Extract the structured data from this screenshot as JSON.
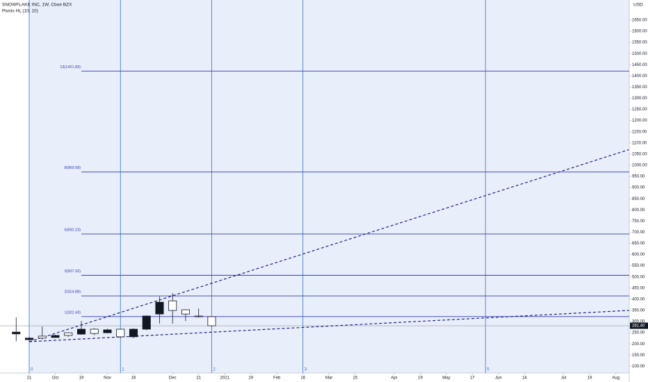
{
  "chart_data": {
    "type": "candlestick",
    "title": "SNOWFLAKE INC, 1W, Cboe BZX",
    "subtitle": "Pivots HL (10, 10)",
    "currency": "USD",
    "x": [
      -1,
      0,
      1,
      2,
      3,
      4,
      5,
      6,
      7,
      8,
      9,
      10,
      11,
      12,
      13,
      14
    ],
    "open": [
      245,
      219,
      235,
      229,
      250,
      244,
      266,
      250,
      266,
      232,
      266,
      334,
      393,
      353,
      325,
      322
    ],
    "high": [
      319,
      232,
      278,
      241,
      252,
      303,
      270,
      268,
      268,
      270,
      327,
      412,
      428,
      355,
      359,
      324
    ],
    "low": [
      212,
      210,
      219,
      228,
      232,
      241,
      240,
      248,
      226,
      226,
      262,
      291,
      291,
      303,
      318,
      278
    ],
    "close": [
      253,
      226,
      226,
      238,
      238,
      266,
      247,
      263,
      232,
      266,
      325,
      387,
      350,
      334,
      322,
      281.4
    ],
    "up_color": "#131722",
    "down_color": "#ffffff",
    "xlim": [
      -2.24,
      46.03
    ],
    "ylim": [
      70,
      1740
    ],
    "xticks": [
      {
        "value": 0,
        "label": "21"
      },
      {
        "value": 2,
        "label": "Oct"
      },
      {
        "value": 4,
        "label": "19"
      },
      {
        "value": 6,
        "label": "Nov"
      },
      {
        "value": 8,
        "label": "16"
      },
      {
        "value": 11,
        "label": "Dec"
      },
      {
        "value": 13,
        "label": "21"
      },
      {
        "value": 15,
        "label": "2021"
      },
      {
        "value": 17,
        "label": "19"
      },
      {
        "value": 19,
        "label": "Feb"
      },
      {
        "value": 21,
        "label": "16"
      },
      {
        "value": 23,
        "label": "Mar"
      },
      {
        "value": 25,
        "label": "15"
      },
      {
        "value": 28,
        "label": "Apr"
      },
      {
        "value": 30,
        "label": "19"
      },
      {
        "value": 32,
        "label": "May"
      },
      {
        "value": 34,
        "label": "17"
      },
      {
        "value": 36,
        "label": "Jun"
      },
      {
        "value": 38,
        "label": "14"
      },
      {
        "value": 41,
        "label": "Jul"
      },
      {
        "value": 43,
        "label": "19"
      },
      {
        "value": 45,
        "label": "Aug"
      }
    ],
    "yticks": [
      {
        "value": 100,
        "label": "100.00"
      },
      {
        "value": 150,
        "label": "150.00"
      },
      {
        "value": 200,
        "label": "200.00"
      },
      {
        "value": 250,
        "label": "250.00"
      },
      {
        "value": 300,
        "label": "300.00"
      },
      {
        "value": 350,
        "label": "350.00"
      },
      {
        "value": 400,
        "label": "400.00"
      },
      {
        "value": 450,
        "label": "450.00"
      },
      {
        "value": 500,
        "label": "500.00"
      },
      {
        "value": 550,
        "label": "550.00"
      },
      {
        "value": 600,
        "label": "600.00"
      },
      {
        "value": 650,
        "label": "650.00"
      },
      {
        "value": 700,
        "label": "700.00"
      },
      {
        "value": 750,
        "label": "750.00"
      },
      {
        "value": 800,
        "label": "800.00"
      },
      {
        "value": 850,
        "label": "850.00"
      },
      {
        "value": 900,
        "label": "900.00"
      },
      {
        "value": 950,
        "label": "950.00"
      },
      {
        "value": 1000,
        "label": "1000.00"
      },
      {
        "value": 1050,
        "label": "1050.00"
      },
      {
        "value": 1100,
        "label": "1100.00"
      },
      {
        "value": 1150,
        "label": "1150.00"
      },
      {
        "value": 1200,
        "label": "1200.00"
      },
      {
        "value": 1250,
        "label": "1250.00"
      },
      {
        "value": 1300,
        "label": "1300.00"
      },
      {
        "value": 1350,
        "label": "1350.00"
      },
      {
        "value": 1400,
        "label": "1400.00"
      },
      {
        "value": 1450,
        "label": "1450.00"
      },
      {
        "value": 1500,
        "label": "1500.00"
      },
      {
        "value": 1550,
        "label": "1550.00"
      },
      {
        "value": 1600,
        "label": "1600.00"
      },
      {
        "value": 1650,
        "label": "1650.00"
      }
    ],
    "trend_lines": [
      {
        "x": [
          0,
          46
        ],
        "values": [
          210,
          1070
        ]
      },
      {
        "x": [
          0,
          46
        ],
        "values": [
          210,
          350
        ]
      }
    ],
    "trend_color": "#1a237e",
    "levels": [
      {
        "value": 322.43,
        "label": "1(322.43)"
      },
      {
        "value": 414.88,
        "label": "2(414.88)"
      },
      {
        "value": 507.32,
        "label": "3(507.32)"
      },
      {
        "value": 692.23,
        "label": "5(692.23)"
      },
      {
        "value": 969.58,
        "label": "8(969.58)"
      },
      {
        "value": 1421.83,
        "label": "13(1421.83)"
      }
    ],
    "levels_start": 4,
    "level_color": "#2b3ab0",
    "time_zones": [
      {
        "value": 0,
        "label": "0"
      },
      {
        "value": 7,
        "label": "1"
      },
      {
        "value": 14,
        "label": "2"
      },
      {
        "value": 21,
        "label": "3"
      },
      {
        "value": 35,
        "label": "5"
      }
    ],
    "zone_color": "#2a74c9",
    "last_price": {
      "value": 281.4,
      "label": "281.40"
    }
  }
}
